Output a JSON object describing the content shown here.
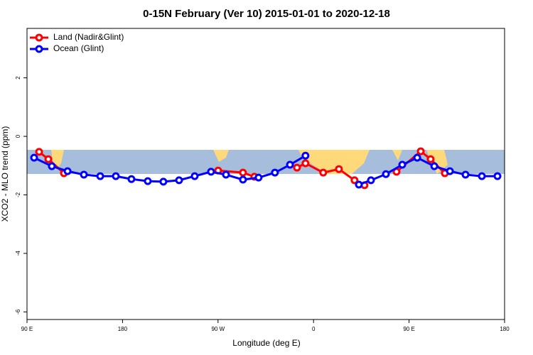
{
  "chart_data": {
    "type": "line",
    "title": "0-15N February (Ver 10)   2015-01-01 to 2020-12-18",
    "x_label": "Longitude (deg E)",
    "y_label": "XCO2 - MLO trend (ppm)",
    "xlim": [
      90,
      540
    ],
    "ylim": [
      -6.26,
      3.69
    ],
    "xticks": [
      {
        "value": 90,
        "label": "90 E"
      },
      180,
      {
        "value": 270,
        "label": "90 W"
      },
      {
        "value": 360,
        "label": "0"
      },
      {
        "value": 450,
        "label": "90 E"
      },
      {
        "value": 540,
        "label": "180"
      }
    ],
    "yticks": [
      -6,
      -4,
      -2,
      0,
      2
    ],
    "legend": "top-left",
    "series": [
      {
        "name": "Land (Nadir&Glint)",
        "color": "#ff0000",
        "x": [
          101.4,
          110.1,
          124.8,
          null,
          270.1,
          293.5,
          304.2,
          null,
          344.4,
          352.4,
          369.1,
          383.9,
          398.6,
          408,
          null,
          438.2,
          461,
          470.3,
          483.7
        ],
        "values": [
          -0.53,
          -0.78,
          -1.26,
          null,
          -1.17,
          -1.24,
          -1.38,
          null,
          -1.07,
          -0.92,
          -1.24,
          -1.12,
          -1.5,
          -1.67,
          null,
          -1.21,
          -0.51,
          -0.78,
          -1.26
        ]
      },
      {
        "name": "Ocean (Glint)",
        "color": "#0000ff",
        "x": [
          96.7,
          113.4,
          128.2,
          143.6,
          159,
          173.7,
          188.4,
          203.8,
          218.5,
          233.3,
          248,
          263.4,
          277.5,
          293.5,
          308.2,
          323.6,
          337.8,
          352.4,
          null,
          402.7,
          414.1,
          428.2,
          443.6,
          457.7,
          473.8,
          488.5,
          503.2,
          518.6,
          533.3
        ],
        "values": [
          -0.73,
          -1.02,
          -1.19,
          -1.31,
          -1.36,
          -1.36,
          -1.46,
          -1.53,
          -1.55,
          -1.5,
          -1.36,
          -1.21,
          -1.31,
          -1.48,
          -1.41,
          -1.24,
          -0.97,
          -0.66,
          null,
          -1.65,
          -1.5,
          -1.29,
          -0.97,
          -0.73,
          -1.02,
          -1.19,
          -1.31,
          -1.36,
          -1.36
        ]
      }
    ]
  }
}
